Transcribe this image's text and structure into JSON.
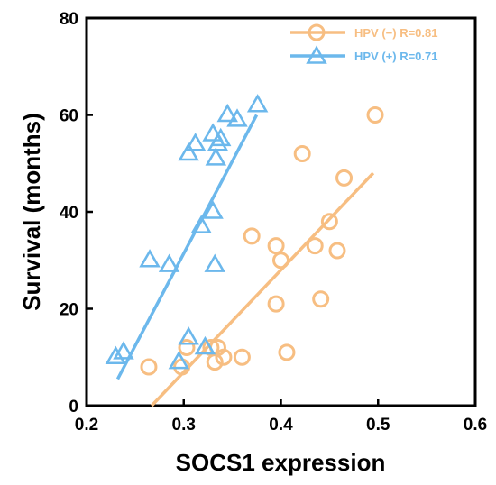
{
  "chart_data": {
    "type": "scatter",
    "title": "",
    "xlabel": "SOCS1 expression",
    "ylabel": "Survival (months)",
    "xlim": [
      0.2,
      0.6
    ],
    "ylim": [
      0,
      80
    ],
    "xticks": [
      "0.2",
      "0.3",
      "0.4",
      "0.5",
      "0.6"
    ],
    "yticks": [
      "0",
      "20",
      "40",
      "60",
      "80"
    ],
    "xtick_values": [
      0.2,
      0.3,
      0.4,
      0.5,
      0.6
    ],
    "ytick_values": [
      0,
      20,
      40,
      60,
      80
    ],
    "grid": false,
    "legend_position": "top-right",
    "series": [
      {
        "name": "HPV (−)",
        "label": "HPV (−) R=0.81",
        "marker": "circle",
        "color": "#F7BE82",
        "points": [
          [
            0.264,
            8
          ],
          [
            0.298,
            8
          ],
          [
            0.303,
            12
          ],
          [
            0.328,
            12
          ],
          [
            0.332,
            9
          ],
          [
            0.335,
            12
          ],
          [
            0.341,
            10
          ],
          [
            0.36,
            10
          ],
          [
            0.37,
            35
          ],
          [
            0.395,
            33
          ],
          [
            0.395,
            21
          ],
          [
            0.4,
            30
          ],
          [
            0.406,
            11
          ],
          [
            0.422,
            52
          ],
          [
            0.435,
            33
          ],
          [
            0.441,
            22
          ],
          [
            0.45,
            38
          ],
          [
            0.458,
            32
          ],
          [
            0.465,
            47
          ],
          [
            0.497,
            60
          ]
        ],
        "fit_line": [
          [
            0.267,
            0
          ],
          [
            0.495,
            48
          ]
        ]
      },
      {
        "name": "HPV (+)",
        "label": "HPV (+)  R=0.71",
        "marker": "triangle",
        "color": "#6CB8EC",
        "points": [
          [
            0.23,
            10
          ],
          [
            0.238,
            11
          ],
          [
            0.265,
            30
          ],
          [
            0.285,
            29
          ],
          [
            0.295,
            9
          ],
          [
            0.305,
            52
          ],
          [
            0.305,
            14
          ],
          [
            0.312,
            54
          ],
          [
            0.318,
            37
          ],
          [
            0.322,
            12
          ],
          [
            0.33,
            56
          ],
          [
            0.33,
            40
          ],
          [
            0.332,
            29
          ],
          [
            0.333,
            51
          ],
          [
            0.335,
            54
          ],
          [
            0.338,
            55
          ],
          [
            0.345,
            60
          ],
          [
            0.355,
            59
          ],
          [
            0.376,
            62
          ]
        ],
        "fit_line": [
          [
            0.232,
            5.5
          ],
          [
            0.375,
            60
          ]
        ]
      }
    ]
  }
}
